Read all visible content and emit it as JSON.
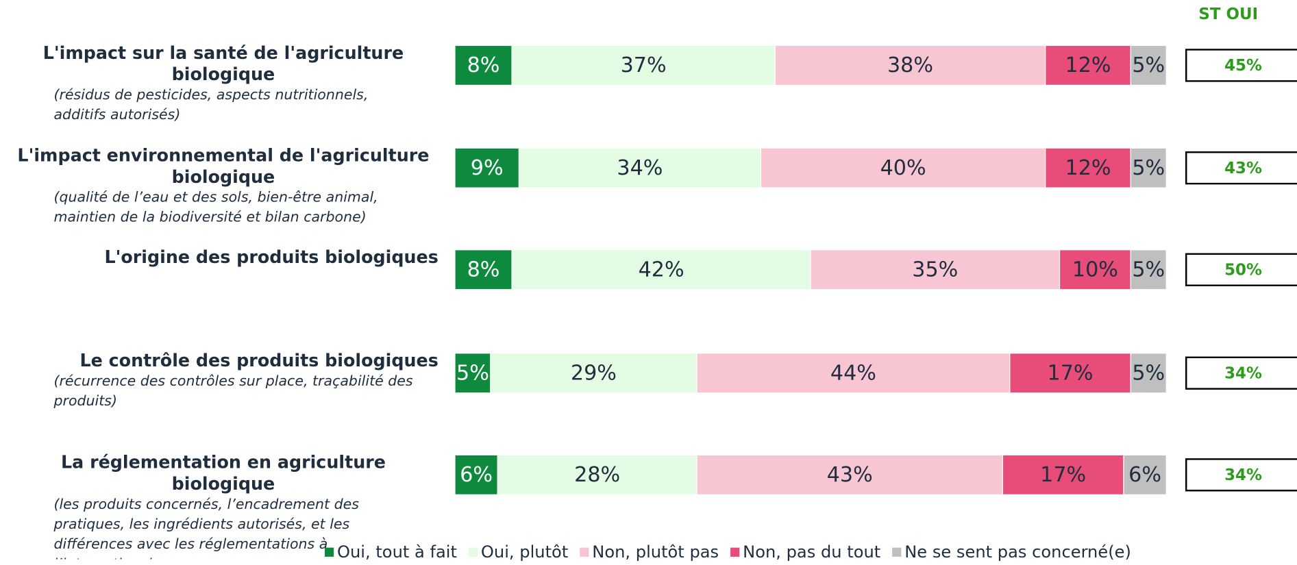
{
  "chart_data": {
    "type": "bar",
    "orientation": "horizontal",
    "stacked": true,
    "categories": [
      "L'impact sur la santé de l'agriculture biologique",
      "L'impact environnemental de l'agriculture biologique",
      "L'origine des produits biologiques",
      "Le contrôle des produits biologiques",
      "La réglementation en agriculture biologique"
    ],
    "subtitles": [
      "(résidus de pesticides, aspects nutritionnels, additifs autorisés)",
      "(qualité de l’eau et des sols, bien-être animal, maintien de la biodiversité et bilan carbone)",
      null,
      "(récurrence des contrôles sur place, traçabilité des produits)",
      "(les produits concernés, l’encadrement des pratiques, les ingrédients autorisés, et les différences avec les réglementations à l’international"
    ],
    "series": [
      {
        "name": "Oui, tout à fait",
        "color": "#0e8a3e",
        "values": [
          8,
          9,
          8,
          5,
          6
        ],
        "value_labels": [
          "8%",
          "9%",
          "8%",
          "5%",
          "6%"
        ]
      },
      {
        "name": "Oui, plutôt",
        "color": "#e4fbe4",
        "values": [
          37,
          34,
          42,
          29,
          28
        ],
        "value_labels": [
          "37%",
          "34%",
          "42%",
          "29%",
          "28%"
        ]
      },
      {
        "name": "Non, plutôt pas",
        "color": "#f8c5d3",
        "values": [
          38,
          40,
          35,
          44,
          43
        ],
        "value_labels": [
          "38%",
          "40%",
          "35%",
          "44%",
          "43%"
        ]
      },
      {
        "name": "Non, pas du tout",
        "color": "#e84d79",
        "values": [
          12,
          12,
          10,
          17,
          17
        ],
        "value_labels": [
          "12%",
          "12%",
          "10%",
          "17%",
          "17%"
        ]
      },
      {
        "name": "Ne se sent pas concerné(e)",
        "color": "#bfbfbf",
        "values": [
          5,
          5,
          5,
          5,
          6
        ],
        "value_labels": [
          "5%",
          "5%",
          "5%",
          "5%",
          "6%"
        ]
      }
    ],
    "xlim": [
      0,
      100
    ],
    "total": {
      "name": "ST OUI",
      "color": "#2e9a1e",
      "values": [
        45,
        43,
        50,
        34,
        34
      ],
      "value_labels": [
        "45%",
        "43%",
        "50%",
        "34%",
        "34%"
      ]
    },
    "legend": "bottom"
  }
}
